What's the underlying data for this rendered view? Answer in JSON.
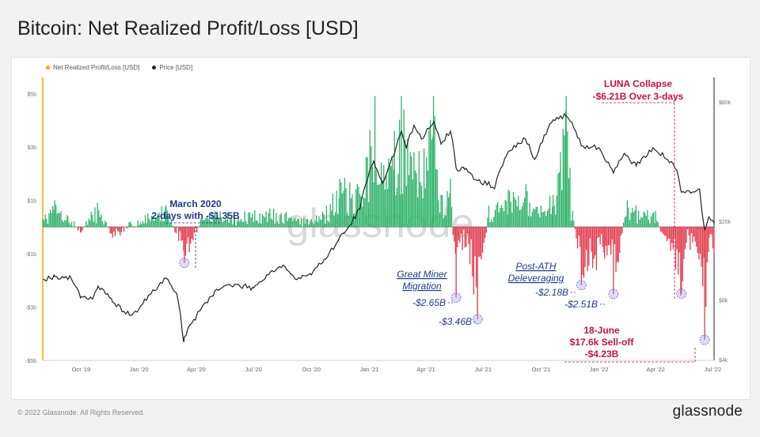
{
  "title": "Bitcoin: Net Realized Profit/Loss [USD]",
  "legend": {
    "items": [
      {
        "label": "Net Realized Profit/Loss [USD]",
        "color": "#f7a600"
      },
      {
        "label": "Price [USD]",
        "color": "#222222"
      }
    ]
  },
  "watermark": "glassnode",
  "footer": {
    "copyright": "© 2022 Glassnode. All Rights Reserved.",
    "logo": "glassnode"
  },
  "colors": {
    "profit": "#2fb36b",
    "loss": "#e23b4a",
    "price": "#222222",
    "annotation_blue": "#1f3b8a",
    "annotation_red": "#c8143c"
  },
  "chart_data": {
    "type": "line",
    "x_ticks": [
      "Oct '19",
      "Jan '20",
      "Apr '20",
      "Jul '20",
      "Oct '20",
      "Jan '21",
      "Apr '21",
      "Jul '21",
      "Oct '21",
      "Jan '22",
      "Apr '22",
      "Jul '22"
    ],
    "x_range": [
      "2019-08-01",
      "2022-07-03"
    ],
    "y_left": {
      "ticks": [
        "$5b",
        "$3b",
        "$1b",
        "-$1b",
        "-$3b",
        "-$5b"
      ],
      "values": [
        5,
        3,
        1,
        -1,
        -3,
        -5
      ],
      "range": [
        -5,
        5.6
      ],
      "unit": "USD billions"
    },
    "y_right": {
      "ticks": [
        "$80k",
        "$20k",
        "$8k",
        "$4k"
      ],
      "values": [
        80000,
        20000,
        8000,
        4000
      ],
      "scale": "log"
    },
    "grid": false,
    "legend_position": "top-left",
    "series": [
      {
        "name": "Price [USD]",
        "points": [
          [
            "2019-08-01",
            10200
          ],
          [
            "2019-08-20",
            10500
          ],
          [
            "2019-09-15",
            10300
          ],
          [
            "2019-10-01",
            8300
          ],
          [
            "2019-10-20",
            8200
          ],
          [
            "2019-10-28",
            9400
          ],
          [
            "2019-11-20",
            7800
          ],
          [
            "2019-12-17",
            6700
          ],
          [
            "2020-01-01",
            7200
          ],
          [
            "2020-01-20",
            8600
          ],
          [
            "2020-02-13",
            10300
          ],
          [
            "2020-03-01",
            8600
          ],
          [
            "2020-03-12",
            4900
          ],
          [
            "2020-03-13",
            5200
          ],
          [
            "2020-04-01",
            6600
          ],
          [
            "2020-04-30",
            8800
          ],
          [
            "2020-05-20",
            9500
          ],
          [
            "2020-06-15",
            9400
          ],
          [
            "2020-07-01",
            9200
          ],
          [
            "2020-07-27",
            11000
          ],
          [
            "2020-08-17",
            12000
          ],
          [
            "2020-09-05",
            10200
          ],
          [
            "2020-10-01",
            10700
          ],
          [
            "2020-10-21",
            12800
          ],
          [
            "2020-11-10",
            15500
          ],
          [
            "2020-12-01",
            19000
          ],
          [
            "2020-12-17",
            23000
          ],
          [
            "2021-01-08",
            40500
          ],
          [
            "2021-01-22",
            31000
          ],
          [
            "2021-02-10",
            44000
          ],
          [
            "2021-02-21",
            57000
          ],
          [
            "2021-03-01",
            47000
          ],
          [
            "2021-03-13",
            61000
          ],
          [
            "2021-03-25",
            52000
          ],
          [
            "2021-04-14",
            63500
          ],
          [
            "2021-04-25",
            49000
          ],
          [
            "2021-05-10",
            57000
          ],
          [
            "2021-05-19",
            37000
          ],
          [
            "2021-06-01",
            36500
          ],
          [
            "2021-06-22",
            32000
          ],
          [
            "2021-07-20",
            30000
          ],
          [
            "2021-08-10",
            45000
          ],
          [
            "2021-09-06",
            52000
          ],
          [
            "2021-09-21",
            41000
          ],
          [
            "2021-10-20",
            65000
          ],
          [
            "2021-11-10",
            68000
          ],
          [
            "2021-11-25",
            57000
          ],
          [
            "2021-12-04",
            48000
          ],
          [
            "2022-01-01",
            47000
          ],
          [
            "2022-01-24",
            35000
          ],
          [
            "2022-02-10",
            44000
          ],
          [
            "2022-03-01",
            38000
          ],
          [
            "2022-03-28",
            47000
          ],
          [
            "2022-04-20",
            41000
          ],
          [
            "2022-05-05",
            36000
          ],
          [
            "2022-05-12",
            28000
          ],
          [
            "2022-06-10",
            29000
          ],
          [
            "2022-06-14",
            22000
          ],
          [
            "2022-06-18",
            18000
          ],
          [
            "2022-06-25",
            21000
          ],
          [
            "2022-07-03",
            19500
          ]
        ]
      },
      {
        "name": "Net Realized Profit/Loss [USD]",
        "unit": "USD billions",
        "points": [
          [
            "2019-08-01",
            0.3
          ],
          [
            "2019-08-20",
            1.0
          ],
          [
            "2019-09-10",
            0.4
          ],
          [
            "2019-10-01",
            -0.2
          ],
          [
            "2019-10-27",
            0.9
          ],
          [
            "2019-11-20",
            -0.4
          ],
          [
            "2020-01-15",
            0.5
          ],
          [
            "2020-02-13",
            0.8
          ],
          [
            "2020-03-12",
            -0.9
          ],
          [
            "2020-03-13",
            -1.35
          ],
          [
            "2020-04-10",
            0.3
          ],
          [
            "2020-05-01",
            0.6
          ],
          [
            "2020-06-01",
            0.4
          ],
          [
            "2020-07-27",
            0.7
          ],
          [
            "2020-08-20",
            0.5
          ],
          [
            "2020-10-01",
            0.3
          ],
          [
            "2020-10-25",
            0.8
          ],
          [
            "2020-11-15",
            1.8
          ],
          [
            "2020-12-15",
            1.5
          ],
          [
            "2020-12-27",
            2.6
          ],
          [
            "2021-01-10",
            4.9
          ],
          [
            "2021-01-28",
            2.0
          ],
          [
            "2021-02-10",
            3.6
          ],
          [
            "2021-02-21",
            4.9
          ],
          [
            "2021-03-13",
            2.8
          ],
          [
            "2021-04-13",
            4.9
          ],
          [
            "2021-04-25",
            1.2
          ],
          [
            "2021-05-10",
            1.8
          ],
          [
            "2021-05-19",
            -2.65
          ],
          [
            "2021-05-25",
            -0.6
          ],
          [
            "2021-06-10",
            -1.4
          ],
          [
            "2021-06-22",
            -3.46
          ],
          [
            "2021-07-10",
            0.8
          ],
          [
            "2021-08-10",
            1.4
          ],
          [
            "2021-09-07",
            1.6
          ],
          [
            "2021-10-01",
            0.8
          ],
          [
            "2021-10-20",
            1.2
          ],
          [
            "2021-11-10",
            4.9
          ],
          [
            "2021-11-20",
            0.6
          ],
          [
            "2021-12-04",
            -2.18
          ],
          [
            "2022-01-10",
            -1.2
          ],
          [
            "2022-01-24",
            -2.51
          ],
          [
            "2022-02-15",
            1.0
          ],
          [
            "2022-03-01",
            0.8
          ],
          [
            "2022-04-01",
            0.6
          ],
          [
            "2022-05-12",
            -2.5
          ],
          [
            "2022-05-20",
            -0.6
          ],
          [
            "2022-06-13",
            -1.5
          ],
          [
            "2022-06-18",
            -4.23
          ],
          [
            "2022-06-25",
            -0.4
          ],
          [
            "2022-07-03",
            -1.0
          ]
        ]
      }
    ],
    "annotations": [
      {
        "lines": [
          "March 2020",
          "2-days with -$1.35B"
        ],
        "date": "2020-03-13",
        "value": -1.35,
        "color": "blue",
        "style": "bold"
      },
      {
        "lines": [
          "Great Miner",
          "Migration"
        ],
        "date": "2021-05-19",
        "value": null,
        "color": "blue",
        "style": "italic-underline"
      },
      {
        "lines": [
          "-$2.65B"
        ],
        "date": "2021-05-19",
        "value": -2.65,
        "color": "blue",
        "style": "italic"
      },
      {
        "lines": [
          "-$3.46B"
        ],
        "date": "2021-06-22",
        "value": -3.46,
        "color": "blue",
        "style": "italic"
      },
      {
        "lines": [
          "Post-ATH",
          "Deleveraging"
        ],
        "date": "2021-12-20",
        "value": null,
        "color": "blue",
        "style": "italic-underline"
      },
      {
        "lines": [
          "-$2.18B"
        ],
        "date": "2021-12-04",
        "value": -2.18,
        "color": "blue",
        "style": "italic"
      },
      {
        "lines": [
          "-$2.51B"
        ],
        "date": "2022-01-24",
        "value": -2.51,
        "color": "blue",
        "style": "italic"
      },
      {
        "lines": [
          "LUNA Collapse",
          "-$6.21B Over 3-days"
        ],
        "date": "2022-05-12",
        "value": -2.5,
        "color": "red",
        "style": "bold"
      },
      {
        "lines": [
          "18-June",
          "$17.6k Sell-off",
          "-$4.23B"
        ],
        "date": "2022-06-18",
        "value": -4.23,
        "color": "red",
        "style": "bold"
      }
    ]
  }
}
